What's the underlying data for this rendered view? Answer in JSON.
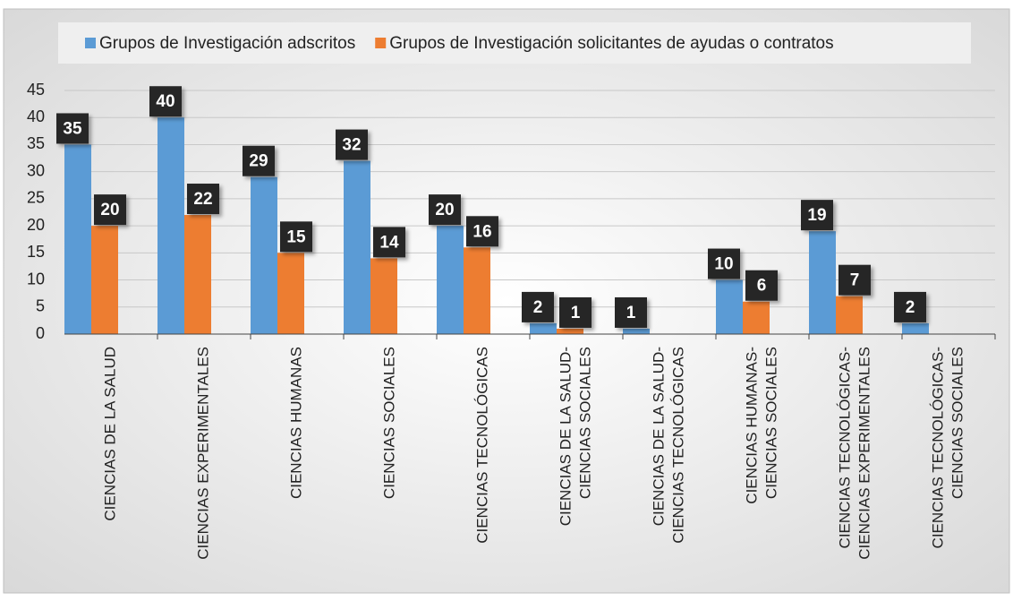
{
  "chart_data": {
    "type": "bar",
    "categories": [
      [
        "CIENCIAS DE LA SALUD"
      ],
      [
        "CIENCIAS EXPERIMENTALES"
      ],
      [
        "CIENCIAS HUMANAS"
      ],
      [
        "CIENCIAS SOCIALES"
      ],
      [
        "CIENCIAS TECNOLÓGICAS"
      ],
      [
        "CIENCIAS DE LA SALUD-",
        "CIENCIAS SOCIALES"
      ],
      [
        "CIENCIAS DE LA SALUD-",
        "CIENCIAS TECNOLÓGICAS"
      ],
      [
        "CIENCIAS HUMANAS-",
        "CIENCIAS SOCIALES"
      ],
      [
        "CIENCIAS TECNOLÓGICAS-",
        "CIENCIAS EXPERIMENTALES"
      ],
      [
        "CIENCIAS TECNOLÓGICAS-",
        "CIENCIAS SOCIALES"
      ]
    ],
    "series": [
      {
        "name": "Grupos de Investigación adscritos",
        "color": "#5b9bd5",
        "values": [
          35,
          40,
          29,
          32,
          20,
          2,
          1,
          10,
          19,
          2
        ]
      },
      {
        "name": "Grupos de Investigación solicitantes de ayudas o contratos",
        "color": "#ed7d31",
        "values": [
          20,
          22,
          15,
          14,
          16,
          1,
          null,
          6,
          7,
          null
        ]
      }
    ],
    "ylim": [
      0,
      45
    ],
    "yticks": [
      0,
      5,
      10,
      15,
      20,
      25,
      30,
      35,
      40,
      45
    ],
    "grid": true,
    "legend": "top"
  }
}
